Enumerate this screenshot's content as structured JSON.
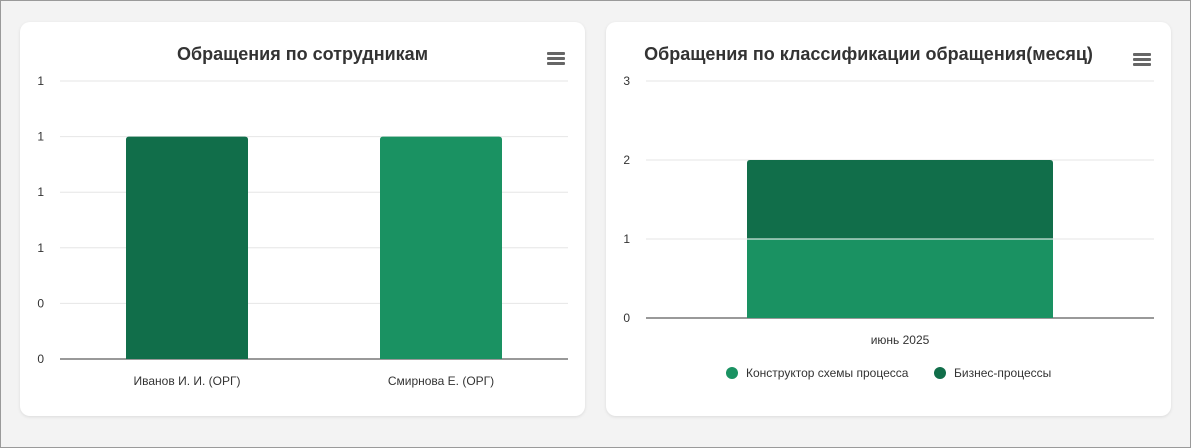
{
  "chart_data": [
    {
      "type": "bar",
      "title": "Обращения по сотрудникам",
      "categories": [
        "Иванов И. И. (ОРГ)",
        "Смирнова Е. (ОРГ)"
      ],
      "values": [
        1,
        1
      ],
      "colors": [
        "#116e4a",
        "#1a9262"
      ],
      "y_tick_labels": [
        "0",
        "0",
        "1",
        "1",
        "1",
        "1"
      ],
      "ylim": [
        0,
        1.25
      ],
      "grid": true,
      "xlabel": "",
      "ylabel": ""
    },
    {
      "type": "bar",
      "stacked": true,
      "title": "Обращения по классификации обращения(месяц)",
      "categories": [
        "июнь 2025"
      ],
      "series": [
        {
          "name": "Конструктор схемы процесса",
          "values": [
            1
          ],
          "color": "#1a9262"
        },
        {
          "name": "Бизнес-процессы",
          "values": [
            1
          ],
          "color": "#116e4a"
        }
      ],
      "y_tick_labels": [
        "0",
        "1",
        "2",
        "3"
      ],
      "ylim": [
        0,
        3
      ],
      "grid": true,
      "legend": "bottom",
      "xlabel": "",
      "ylabel": ""
    }
  ],
  "icons": {
    "menu": "hamburger-menu-icon",
    "legend_marker": "circle"
  }
}
